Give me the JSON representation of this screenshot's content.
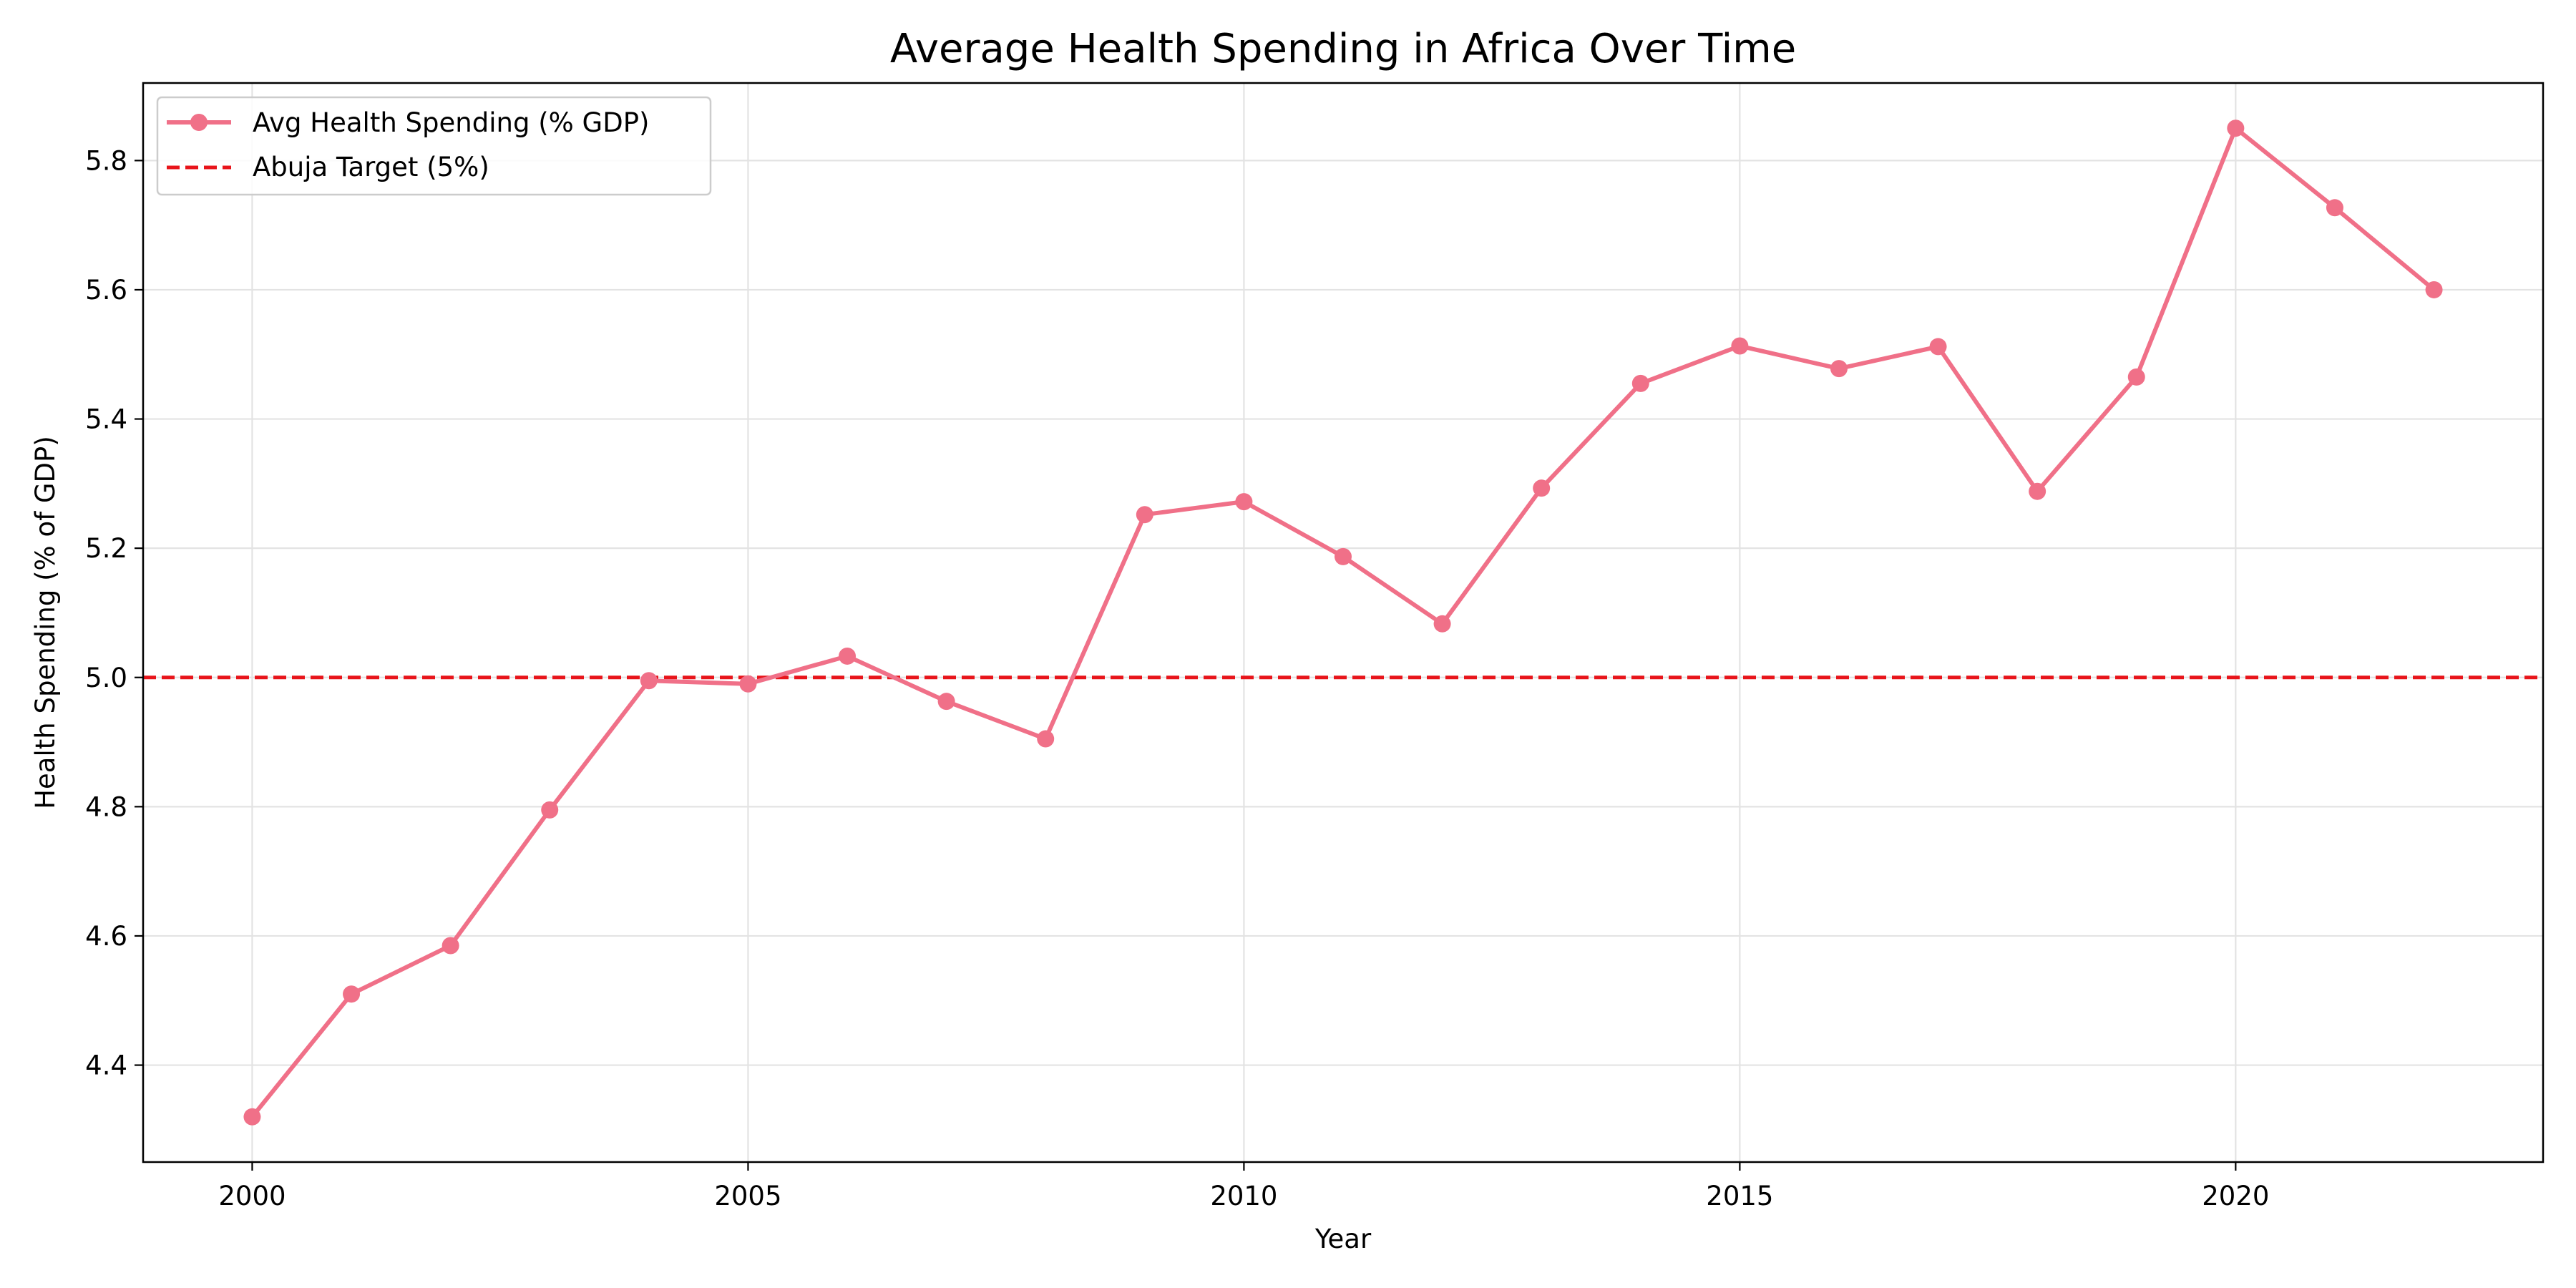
{
  "chart_data": {
    "type": "line",
    "title": "Average Health Spending in Africa Over Time",
    "xlabel": "Year",
    "ylabel": "Health Spending (% of GDP)",
    "xlim": [
      1998.9,
      2023.1
    ],
    "ylim": [
      4.25,
      5.92
    ],
    "xticks": [
      2000,
      2005,
      2010,
      2015,
      2020
    ],
    "yticks": [
      4.4,
      4.6,
      4.8,
      5.0,
      5.2,
      5.4,
      5.6,
      5.8
    ],
    "grid": true,
    "legend_position": "top-left",
    "series": [
      {
        "name": "Avg Health Spending (% GDP)",
        "color": "#f07088",
        "marker": "circle",
        "x": [
          2000,
          2001,
          2002,
          2003,
          2004,
          2005,
          2006,
          2007,
          2008,
          2009,
          2010,
          2011,
          2012,
          2013,
          2014,
          2015,
          2016,
          2017,
          2018,
          2019,
          2020,
          2021,
          2022
        ],
        "y": [
          4.32,
          4.51,
          4.585,
          4.795,
          4.995,
          4.99,
          5.033,
          4.963,
          4.905,
          5.252,
          5.272,
          5.187,
          5.083,
          5.293,
          5.455,
          5.513,
          5.478,
          5.512,
          5.288,
          5.465,
          5.85,
          5.727,
          5.6
        ]
      }
    ],
    "reference_lines": [
      {
        "name": "Abuja Target (5%)",
        "y": 5.0,
        "color": "#e8141a",
        "style": "dashed"
      }
    ]
  }
}
